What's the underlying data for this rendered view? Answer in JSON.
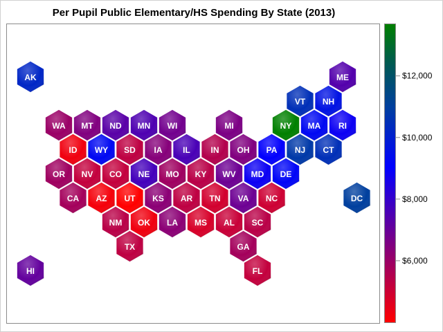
{
  "chart_data": {
    "type": "heatmap",
    "subtype": "hexagonal tile map",
    "title": "Per Pupil Public Elementary/HS Spending By State (2013)",
    "colorbar": {
      "range": [
        4000,
        13700
      ],
      "ticks": [
        6000,
        8000,
        10000,
        12000
      ],
      "tick_labels": [
        "$6,000",
        "$8,000",
        "$10,000",
        "$12,000"
      ],
      "colors": [
        "#ff0000",
        "#800080",
        "#0000ff",
        "#003f9f",
        "#005a50",
        "#008000"
      ],
      "placement": "right"
    },
    "states": [
      {
        "abbr": "AK",
        "value": 10200
      },
      {
        "abbr": "ME",
        "value": 7400
      },
      {
        "abbr": "VT",
        "value": 10500
      },
      {
        "abbr": "NH",
        "value": 9600
      },
      {
        "abbr": "WA",
        "value": 6000
      },
      {
        "abbr": "MT",
        "value": 6500
      },
      {
        "abbr": "ND",
        "value": 7300
      },
      {
        "abbr": "MN",
        "value": 7500
      },
      {
        "abbr": "WI",
        "value": 6800
      },
      {
        "abbr": "MI",
        "value": 6600
      },
      {
        "abbr": "NY",
        "value": 13700
      },
      {
        "abbr": "MA",
        "value": 9300
      },
      {
        "abbr": "RI",
        "value": 8800
      },
      {
        "abbr": "ID",
        "value": 4300
      },
      {
        "abbr": "WY",
        "value": 9300
      },
      {
        "abbr": "SD",
        "value": 5300
      },
      {
        "abbr": "IA",
        "value": 6400
      },
      {
        "abbr": "IL",
        "value": 7600
      },
      {
        "abbr": "IN",
        "value": 5500
      },
      {
        "abbr": "OH",
        "value": 6500
      },
      {
        "abbr": "PA",
        "value": 9000
      },
      {
        "abbr": "NJ",
        "value": 10800
      },
      {
        "abbr": "CT",
        "value": 10500
      },
      {
        "abbr": "OR",
        "value": 5900
      },
      {
        "abbr": "NV",
        "value": 5200
      },
      {
        "abbr": "CO",
        "value": 5200
      },
      {
        "abbr": "NE",
        "value": 7700
      },
      {
        "abbr": "MO",
        "value": 5900
      },
      {
        "abbr": "KY",
        "value": 5400
      },
      {
        "abbr": "WV",
        "value": 6900
      },
      {
        "abbr": "MD",
        "value": 8800
      },
      {
        "abbr": "DE",
        "value": 9200
      },
      {
        "abbr": "CA",
        "value": 5800
      },
      {
        "abbr": "AZ",
        "value": 4200
      },
      {
        "abbr": "UT",
        "value": 4000
      },
      {
        "abbr": "KS",
        "value": 6300
      },
      {
        "abbr": "AR",
        "value": 5300
      },
      {
        "abbr": "TN",
        "value": 4900
      },
      {
        "abbr": "VA",
        "value": 6900
      },
      {
        "abbr": "NC",
        "value": 5000
      },
      {
        "abbr": "DC",
        "value": 11000
      },
      {
        "abbr": "NM",
        "value": 5400
      },
      {
        "abbr": "OK",
        "value": 4300
      },
      {
        "abbr": "LA",
        "value": 6300
      },
      {
        "abbr": "MS",
        "value": 4800
      },
      {
        "abbr": "AL",
        "value": 5100
      },
      {
        "abbr": "SC",
        "value": 5400
      },
      {
        "abbr": "TX",
        "value": 5300
      },
      {
        "abbr": "GA",
        "value": 5800
      },
      {
        "abbr": "FL",
        "value": 5200
      },
      {
        "abbr": "HI",
        "value": 7100
      }
    ]
  }
}
